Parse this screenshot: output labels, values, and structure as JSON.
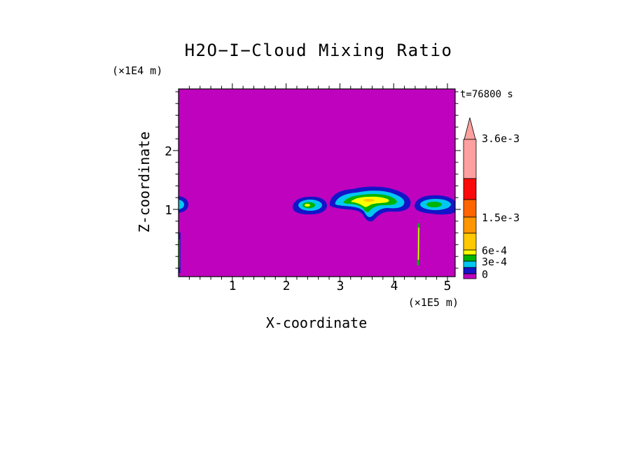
{
  "title": "H2O−I−Cloud Mixing Ratio",
  "timestamp": "t=76800 s",
  "axes": {
    "x_label": "X-coordinate",
    "x_units": "(×1E5 m)",
    "y_label": "Z-coordinate",
    "y_units": "(×1E4 m)",
    "x_ticks": [
      "1",
      "2",
      "3",
      "4",
      "5"
    ],
    "y_ticks": [
      "2",
      "1"
    ]
  },
  "colorbar": {
    "labels": [
      "3.6e-3",
      "1.5e-3",
      "6e-4",
      "3e-4",
      "0"
    ]
  },
  "palette": {
    "magenta": "#BE02BE",
    "blue": "#1414C8",
    "cyan": "#00C8F0",
    "green": "#00B400",
    "yellow": "#FFFF00",
    "amber": "#FFC800",
    "orange": "#FF9600",
    "dark_orange": "#FF6400",
    "red": "#FA0A0A",
    "pink": "#FFA0A0",
    "black": "#000000"
  },
  "chart_data": {
    "type": "heatmap",
    "subtype": "filled-contour",
    "title": "H2O−I−Cloud Mixing Ratio",
    "xlabel": "X-coordinate (×1E5 m)",
    "ylabel": "Z-coordinate (×1E4 m)",
    "time_annotation": "t=76800 s",
    "x_range": [
      0,
      5.15
    ],
    "z_range": [
      0,
      3.0
    ],
    "contour_levels": [
      0,
      0.0003,
      0.0006,
      0.0015,
      0.0036
    ],
    "background_value": 0,
    "grid": false,
    "legend_position": "right",
    "colorbar": {
      "orientation": "vertical",
      "arrow_top": true,
      "tick_labels": [
        "3.6e-3",
        "1.5e-3",
        "6e-4",
        "3e-4",
        "0"
      ],
      "colors_bottom_to_top": [
        "magenta",
        "blue",
        "cyan",
        "green",
        "yellow",
        "amber",
        "orange",
        "dark_orange",
        "red",
        "pink"
      ]
    },
    "features": [
      {
        "name": "left-edge-cloud",
        "x_extent": [
          0,
          0.2
        ],
        "z_extent": [
          1.0,
          1.25
        ],
        "peak_level": 0.0003
      },
      {
        "name": "small-cloud",
        "x_extent": [
          2.15,
          2.75
        ],
        "z_extent": [
          0.95,
          1.35
        ],
        "peak_level": 0.0006
      },
      {
        "name": "main-cloud",
        "x_extent": [
          2.8,
          4.3
        ],
        "z_extent": [
          0.9,
          1.45
        ],
        "peak_level": 0.0015
      },
      {
        "name": "right-cloud",
        "x_extent": [
          4.35,
          5.15
        ],
        "z_extent": [
          1.0,
          1.3
        ],
        "peak_level": 0.0006
      },
      {
        "name": "fall-streak",
        "x_extent": [
          4.42,
          4.48
        ],
        "z_extent": [
          0.15,
          0.9
        ],
        "peak_level": 0.0006
      },
      {
        "name": "left-edge-streak",
        "x_extent": [
          0,
          0.04
        ],
        "z_extent": [
          0.05,
          0.75
        ],
        "peak_level": 0.0003
      }
    ]
  }
}
